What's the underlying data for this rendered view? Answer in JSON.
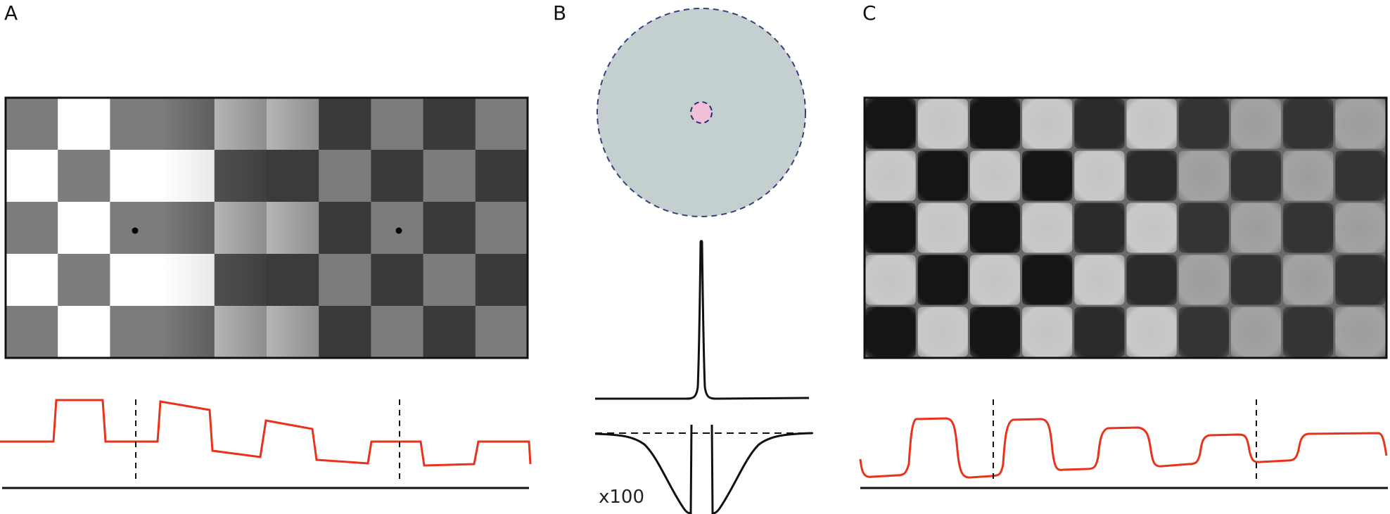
{
  "panels": {
    "a": {
      "label": "A",
      "checkerboard": {
        "rows": 5,
        "cols": 10,
        "dark_square_gray": "#7c7c7c"
      },
      "profile_color": "#e8321b"
    },
    "b": {
      "label": "B",
      "surround_color": "#c4cfcf",
      "center_color": "#f2bfd9",
      "outline_color": "#3a3f7a",
      "scale_label": "x100"
    },
    "c": {
      "label": "C",
      "profile_color": "#e8321b"
    }
  }
}
